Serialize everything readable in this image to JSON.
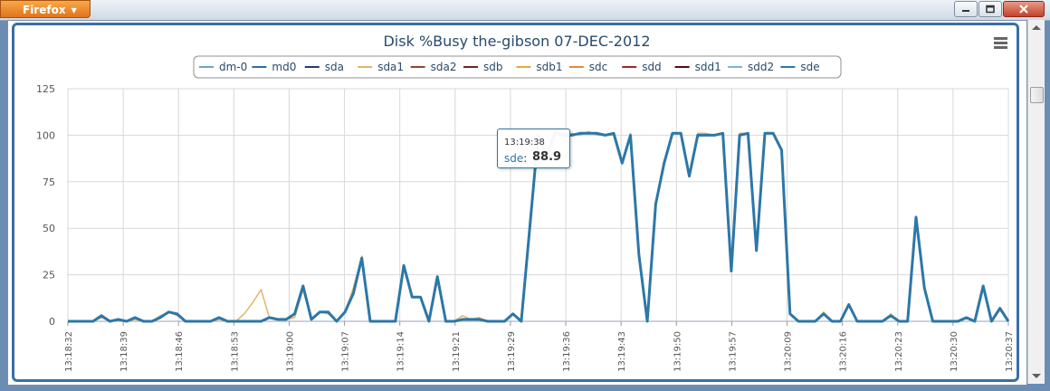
{
  "app": {
    "menu_button_label": "Firefox"
  },
  "colors": {
    "frame": "#3b6fa6",
    "title": "#274b6d",
    "grid": "#d8d8d8"
  },
  "tooltip": {
    "time": "13:19:38",
    "series": "sde",
    "value": "88.9"
  },
  "chart_data": {
    "type": "line",
    "title": "Disk %Busy the-gibson 07-DEC-2012",
    "xlabel": "",
    "ylabel": "",
    "ylim": [
      0,
      125
    ],
    "yticks": [
      0,
      25,
      50,
      75,
      100,
      125
    ],
    "grid": true,
    "legend_position": "top-center",
    "x_tick_labels": [
      "13:18:32",
      "13:18:39",
      "13:18:46",
      "13:18:53",
      "13:19:00",
      "13:19:07",
      "13:19:14",
      "13:19:21",
      "13:19:29",
      "13:19:36",
      "13:19:43",
      "13:19:50",
      "13:19:57",
      "13:20:09",
      "13:20:16",
      "13:20:23",
      "13:20:30",
      "13:20:37"
    ],
    "series": [
      {
        "name": "dm-0",
        "color": "#6aa3d0",
        "values": []
      },
      {
        "name": "md0",
        "color": "#2f6da3",
        "values": []
      },
      {
        "name": "sda",
        "color": "#1f3f66",
        "values": []
      },
      {
        "name": "sda1",
        "color": "#e3b36a",
        "values": [
          0,
          0,
          0,
          0,
          2,
          0,
          1,
          0,
          1,
          0,
          0,
          3,
          5,
          3,
          0,
          0,
          0,
          0,
          1,
          0,
          0,
          4,
          10,
          17,
          2,
          1,
          1,
          2,
          17,
          1,
          5,
          4,
          0,
          5,
          18,
          35,
          0,
          0,
          0,
          0,
          30,
          13,
          13,
          0,
          22,
          0,
          0,
          3,
          1,
          2,
          0,
          0,
          0,
          4,
          0,
          50,
          100,
          89,
          102,
          100,
          101,
          100,
          102,
          100,
          100,
          100,
          85,
          101,
          35,
          0,
          63,
          85,
          101,
          101,
          78,
          101,
          101,
          100,
          101,
          27,
          101,
          101,
          38,
          101,
          101,
          92,
          4,
          0,
          0,
          0,
          5,
          0,
          0,
          9,
          0,
          0,
          0,
          0,
          4,
          0,
          0,
          56,
          18,
          0,
          0,
          0,
          0,
          2,
          0,
          19,
          0,
          6,
          0
        ]
      },
      {
        "name": "sda2",
        "color": "#8b4a2b",
        "values": []
      },
      {
        "name": "sdb",
        "color": "#6b2a1a",
        "values": []
      },
      {
        "name": "sdb1",
        "color": "#e9a93a",
        "values": []
      },
      {
        "name": "sdc",
        "color": "#e38b3a",
        "values": []
      },
      {
        "name": "sdd",
        "color": "#a3262a",
        "values": []
      },
      {
        "name": "sdd1",
        "color": "#5a0a0a",
        "values": []
      },
      {
        "name": "sdd2",
        "color": "#79b6dd",
        "values": []
      },
      {
        "name": "sde",
        "color": "#2c77a8",
        "values": [
          0,
          0,
          0,
          0,
          3,
          0,
          1,
          0,
          2,
          0,
          0,
          2,
          5,
          4,
          0,
          0,
          0,
          0,
          2,
          0,
          0,
          0,
          0,
          0,
          2,
          1,
          1,
          4,
          19,
          1,
          5,
          5,
          0,
          5,
          15,
          34,
          0,
          0,
          0,
          0,
          30,
          13,
          13,
          0,
          24,
          0,
          0,
          1,
          1,
          1,
          0,
          0,
          0,
          4,
          0,
          50,
          100,
          89,
          101,
          100,
          100,
          101,
          101,
          101,
          100,
          101,
          85,
          100,
          36,
          0,
          63,
          85,
          101,
          101,
          78,
          100,
          100,
          100,
          101,
          27,
          100,
          101,
          38,
          101,
          101,
          92,
          4,
          0,
          0,
          0,
          4,
          0,
          0,
          9,
          0,
          0,
          0,
          0,
          3,
          0,
          0,
          56,
          18,
          0,
          0,
          0,
          0,
          2,
          0,
          19,
          0,
          7,
          0
        ]
      }
    ]
  }
}
